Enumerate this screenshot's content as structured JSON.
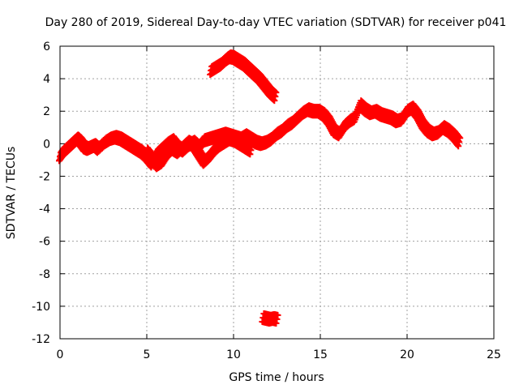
{
  "chart_data": {
    "type": "scatter",
    "title": "Day 280 of 2019, Sidereal Day-to-day VTEC variation (SDTVAR) for receiver p041",
    "xlabel": "GPS time / hours",
    "ylabel": "SDTVAR / TECUs",
    "xlim": [
      0,
      25
    ],
    "ylim": [
      -12,
      6
    ],
    "xticks": [
      "0",
      "5",
      "10",
      "15",
      "20",
      "25"
    ],
    "yticks": [
      "6",
      "4",
      "2",
      "0",
      "-2",
      "-4",
      "-6",
      "-8",
      "-10",
      "-12"
    ],
    "grid": true,
    "marker": "plus",
    "color": "#ff0000",
    "series": [
      {
        "name": "main",
        "x": [
          0.0,
          0.2,
          0.4,
          0.6,
          0.8,
          1.0,
          1.2,
          1.4,
          1.6,
          1.8,
          2.0,
          2.2,
          2.6,
          2.9,
          3.2,
          3.5,
          3.8,
          4.1,
          4.4,
          4.7,
          5.0,
          5.3,
          5.6,
          5.9,
          6.2,
          6.5,
          6.8,
          7.1,
          7.4,
          7.7,
          8.0,
          8.3,
          8.6,
          8.9,
          9.2,
          9.5,
          9.8,
          10.1,
          10.4,
          10.7,
          11.0,
          11.3,
          11.6,
          11.9,
          12.2,
          12.5,
          12.8,
          13.1,
          13.4,
          13.7,
          14.0,
          14.3,
          14.6,
          14.9,
          15.2,
          15.5,
          15.8,
          16.1,
          16.4,
          16.7,
          17.0,
          17.3,
          17.6,
          17.9,
          18.2,
          18.5,
          18.8,
          19.1,
          19.4,
          19.7,
          20.0,
          20.3,
          20.6,
          20.9,
          21.2,
          21.5,
          21.8,
          22.1,
          22.4,
          22.7,
          23.0
        ],
        "y": [
          -0.8,
          -0.5,
          -0.3,
          -0.1,
          0.1,
          0.3,
          0.1,
          -0.2,
          -0.3,
          -0.2,
          -0.1,
          -0.3,
          0.1,
          0.3,
          0.4,
          0.3,
          0.1,
          -0.1,
          -0.3,
          -0.5,
          -0.8,
          -1.2,
          -0.6,
          -0.3,
          0.0,
          0.2,
          -0.2,
          -0.4,
          -0.1,
          0.1,
          -0.2,
          0.2,
          0.3,
          0.4,
          0.5,
          0.6,
          0.5,
          0.4,
          0.3,
          0.5,
          0.3,
          0.1,
          0.0,
          0.1,
          0.3,
          0.6,
          0.8,
          1.1,
          1.3,
          1.6,
          1.9,
          2.1,
          2.0,
          2.0,
          1.8,
          1.4,
          0.8,
          0.6,
          1.1,
          1.4,
          1.6,
          2.4,
          2.1,
          1.9,
          2.0,
          1.8,
          1.7,
          1.6,
          1.4,
          1.5,
          2.0,
          2.2,
          1.8,
          1.2,
          0.8,
          0.6,
          0.7,
          1.0,
          0.8,
          0.5,
          0.1
        ]
      },
      {
        "name": "upper-arc",
        "x": [
          8.7,
          9.0,
          9.3,
          9.6,
          9.8,
          10.0,
          10.3,
          10.6,
          10.9,
          11.2,
          11.5,
          11.8,
          12.1,
          12.4
        ],
        "y": [
          4.5,
          4.7,
          4.9,
          5.2,
          5.35,
          5.3,
          5.1,
          4.9,
          4.6,
          4.3,
          4.0,
          3.6,
          3.2,
          2.9
        ]
      },
      {
        "name": "low-cluster",
        "x": [
          11.7,
          11.9,
          12.1,
          12.3,
          12.5
        ],
        "y": [
          -10.7,
          -10.75,
          -10.8,
          -10.75,
          -10.8
        ]
      },
      {
        "name": "low-band",
        "x": [
          5.0,
          5.3,
          5.6,
          5.9,
          6.2,
          6.5,
          6.8,
          7.1,
          7.4,
          7.7,
          8.0,
          8.3,
          8.6,
          8.9,
          9.2,
          9.5,
          9.8,
          10.1,
          10.4,
          10.7,
          11.0
        ],
        "y": [
          -0.5,
          -0.9,
          -1.3,
          -1.1,
          -0.6,
          -0.3,
          -0.5,
          -0.2,
          0.1,
          -0.1,
          -0.6,
          -1.1,
          -0.8,
          -0.4,
          -0.1,
          0.1,
          0.3,
          0.2,
          0.0,
          -0.2,
          -0.4
        ]
      }
    ]
  }
}
